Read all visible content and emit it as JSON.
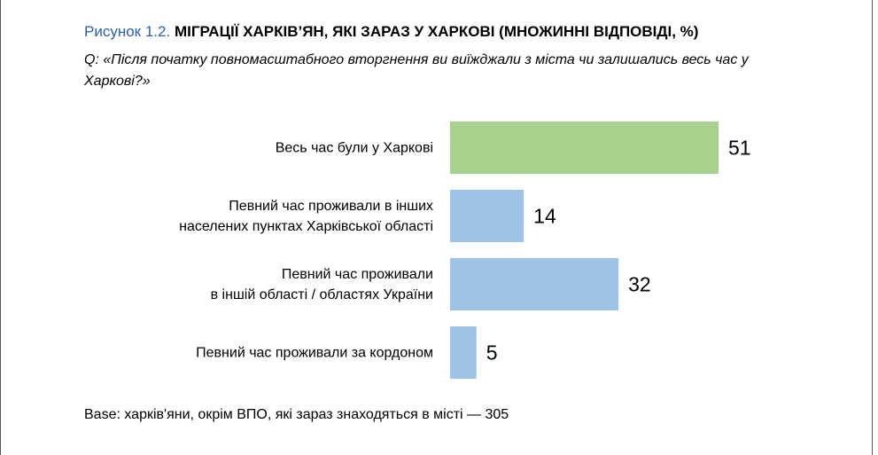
{
  "chart_data": {
    "type": "bar",
    "orientation": "horizontal",
    "figure_label": "Рисунок 1.2.",
    "title": "МІГРАЦІЇ ХАРКІВ’ЯН, ЯКІ ЗАРАЗ У ХАРКОВІ (МНОЖИННІ ВІДПОВІДІ, %)",
    "subtitle": "Q: «Після початку повномасштабного вторгнення ви виїжджали з міста чи залишались весь час у Харкові?»",
    "categories": [
      "Весь час були у Харкові",
      "Певний час проживали в інших\nнаселених пунктах Харківської області",
      "Певний час проживали\nв іншій області / областях України",
      "Певний час проживали за кордоном"
    ],
    "values": [
      51,
      14,
      32,
      5
    ],
    "colors": [
      "#a9d18e",
      "#9dc3e6",
      "#9dc3e6",
      "#9dc3e6"
    ],
    "footnote": "Base: харків'яни, окрім ВПО, які зараз знаходяться в місті — 305"
  }
}
